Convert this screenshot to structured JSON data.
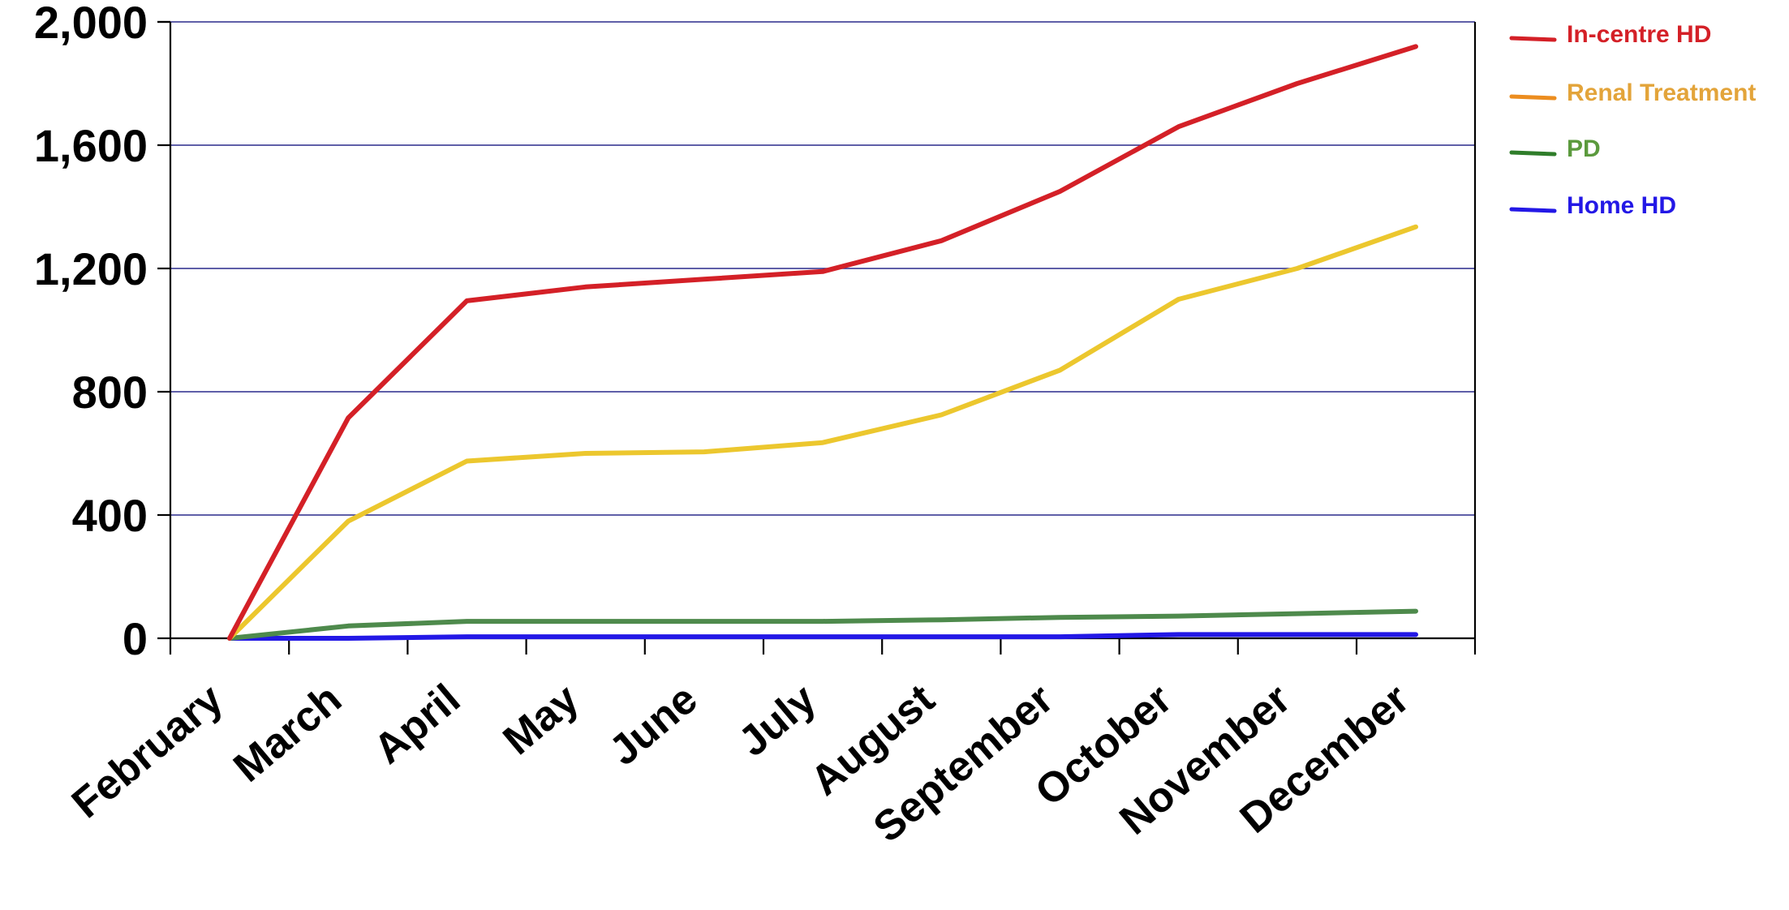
{
  "chart_data": {
    "type": "line",
    "title": "",
    "xlabel": "",
    "ylabel": "",
    "categories": [
      "February",
      "March",
      "April",
      "May",
      "June",
      "July",
      "August",
      "September",
      "October",
      "November",
      "December"
    ],
    "ylim": [
      0,
      2000
    ],
    "yticks": [
      0,
      400,
      800,
      1200,
      1600,
      2000
    ],
    "ytick_labels": [
      "0",
      "400",
      "800",
      "1,200",
      "1,600",
      "2,000"
    ],
    "grid": "horizontal",
    "legend_position": "right",
    "series": [
      {
        "name": "In-centre HD",
        "color": "#d42027",
        "values": [
          0,
          715,
          1095,
          1140,
          1165,
          1190,
          1290,
          1450,
          1660,
          1800,
          1920
        ]
      },
      {
        "name": "Renal Treatment",
        "color": "#ecc72e",
        "values": [
          0,
          380,
          575,
          600,
          605,
          635,
          725,
          870,
          1100,
          1200,
          1335
        ]
      },
      {
        "name": "PD",
        "color": "#4e8a4c",
        "values": [
          0,
          40,
          55,
          55,
          55,
          55,
          60,
          68,
          72,
          80,
          88
        ]
      },
      {
        "name": "Home HD",
        "color": "#2318e6",
        "values": [
          0,
          0,
          5,
          5,
          5,
          5,
          5,
          5,
          12,
          12,
          12
        ]
      }
    ],
    "legend_text_colors": [
      "#d42027",
      "#e3a43a",
      "#5b9a3d",
      "#2318e6"
    ],
    "legend_swatch_colors": [
      "#d42027",
      "#ec8d1f",
      "#2f7d2a",
      "#2318e6"
    ]
  }
}
